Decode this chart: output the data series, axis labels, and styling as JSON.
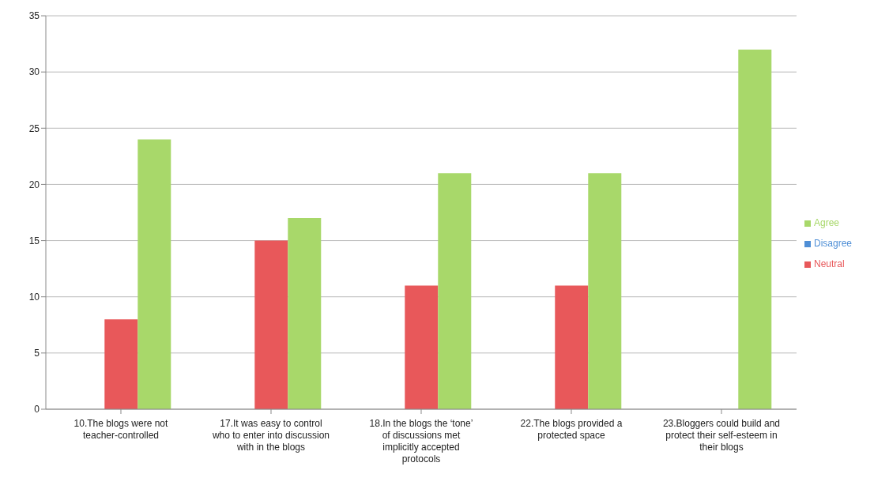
{
  "chart_data": {
    "type": "bar",
    "categories": [
      "10.The blogs were not teacher-controlled",
      "17.It was easy to control who to enter into discussion with in the blogs",
      "18.In the blogs the ‘tone’ of discussions met implicitly accepted protocols",
      "22.The blogs provided a protected space",
      "23.Bloggers could build and protect their self-esteem in their blogs"
    ],
    "series": [
      {
        "name": "Disagree",
        "color": "#4f8fd6",
        "values": [
          0,
          0,
          0,
          0,
          0
        ]
      },
      {
        "name": "Neutral",
        "color": "#e8585a",
        "values": [
          8,
          15,
          11,
          11,
          0
        ]
      },
      {
        "name": "Agree",
        "color": "#a8d86a",
        "values": [
          24,
          17,
          21,
          21,
          32
        ]
      }
    ],
    "ylim": [
      0,
      35
    ],
    "yticks": [
      0,
      5,
      10,
      15,
      20,
      25,
      30,
      35
    ],
    "grid": "y",
    "legend": "right"
  }
}
